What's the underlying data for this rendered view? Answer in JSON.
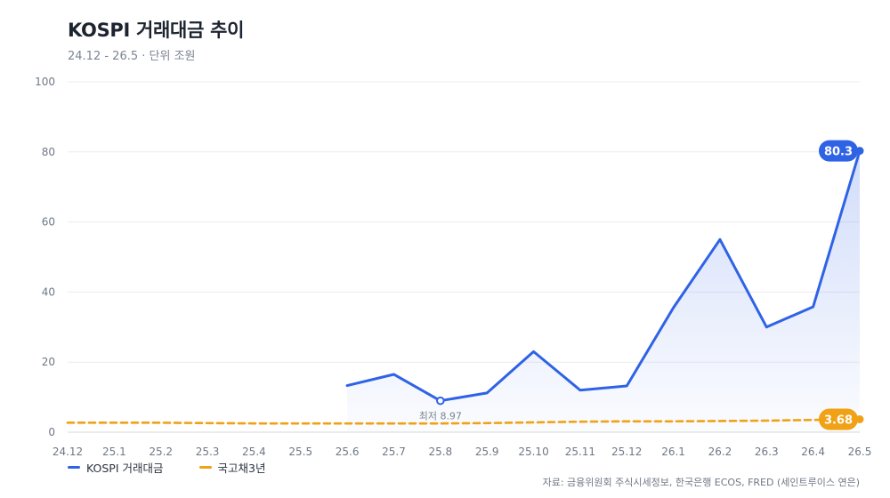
{
  "header": {
    "title": "KOSPI 거래대금 추이",
    "subtitle": "24.12 - 26.5 · 단위 조원"
  },
  "source": "자료: 금융위원회 주식시세정보, 한국은행 ECOS, FRED (세인트루이스 연은)",
  "colors": {
    "kospi": "#2f63e6",
    "bond": "#f0a114",
    "grid": "#ececf0",
    "axis_text": "#6f7885"
  },
  "chart_data": {
    "type": "line",
    "title": "KOSPI 거래대금 추이",
    "subtitle": "24.12 - 26.5 · 단위 조원",
    "x": [
      "24.12",
      "25.1",
      "25.2",
      "25.3",
      "25.4",
      "25.5",
      "25.6",
      "25.7",
      "25.8",
      "25.9",
      "25.10",
      "25.11",
      "25.12",
      "26.1",
      "26.2",
      "26.3",
      "26.4",
      "26.5"
    ],
    "yticks": [
      0,
      20,
      40,
      60,
      80,
      100
    ],
    "ylim": [
      0,
      100
    ],
    "grid": true,
    "legend_position": "bottom-left",
    "series": [
      {
        "name": "KOSPI 거래대금",
        "style": "solid",
        "area_fill": true,
        "values": [
          null,
          null,
          null,
          null,
          null,
          null,
          13.3,
          16.5,
          8.97,
          11.2,
          23.0,
          12.0,
          13.2,
          35.5,
          55.0,
          30.0,
          35.8,
          80.3
        ]
      },
      {
        "name": "국고채3년",
        "style": "dashed",
        "values": [
          2.7,
          2.7,
          2.7,
          2.6,
          2.5,
          2.5,
          2.5,
          2.5,
          2.5,
          2.6,
          2.8,
          3.0,
          3.1,
          3.1,
          3.2,
          3.3,
          3.5,
          3.68
        ]
      }
    ],
    "annotations": [
      {
        "series": 0,
        "x": "25.8",
        "text": "최저 8.97",
        "marker": "hollow-circle"
      },
      {
        "series": 0,
        "x": "26.5",
        "text": "80.3",
        "style": "end-badge"
      },
      {
        "series": 1,
        "x": "26.5",
        "text": "3.68",
        "style": "end-badge"
      }
    ]
  }
}
